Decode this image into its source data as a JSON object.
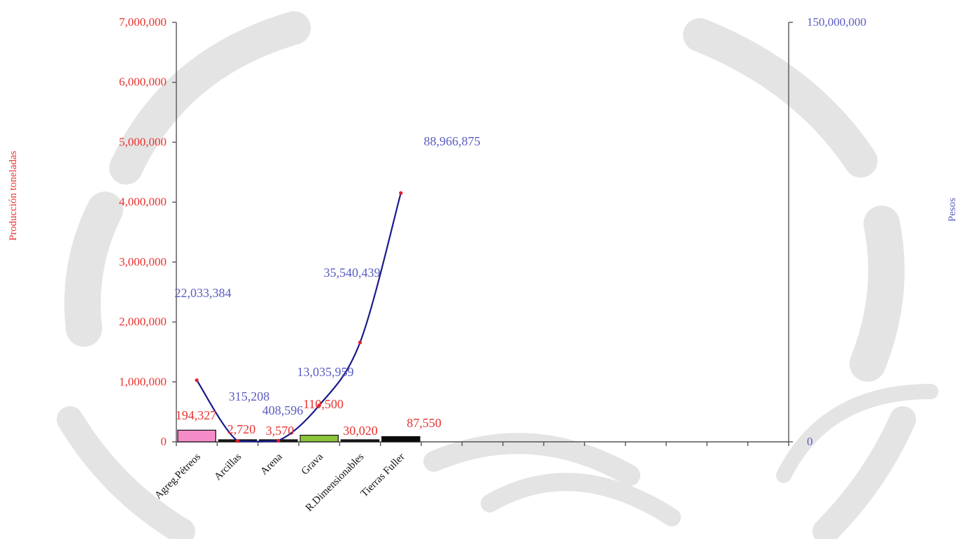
{
  "colors": {
    "left_axis_text": "#e8332f",
    "right_axis_text": "#5a5cc0",
    "line": "#1a1a8c",
    "marker": "#e0202a",
    "axis": "#555555",
    "watermark": "#e4e4e4"
  },
  "chart_data": {
    "type": "bar",
    "title": "",
    "categories": [
      "Agreg.Pétreos",
      "Arcillas",
      "Arena",
      "Grava",
      "R.Dimensionables",
      "Tierras Fuller"
    ],
    "empty_category_slots": 9,
    "y_left": {
      "label": "Producción toneladas",
      "range": [
        0,
        7000000
      ],
      "ticks": [
        "0",
        "1,000,000",
        "2,000,000",
        "3,000,000",
        "4,000,000",
        "5,000,000",
        "6,000,000",
        "7,000,000"
      ],
      "tick_values": [
        0,
        1000000,
        2000000,
        3000000,
        4000000,
        5000000,
        6000000,
        7000000
      ]
    },
    "y_right": {
      "label": "Pesos",
      "range": [
        0,
        150000000
      ],
      "ticks": [
        "0",
        "150,000,000"
      ],
      "tick_values": [
        0,
        150000000
      ]
    },
    "series": [
      {
        "type": "bar",
        "axis": "left",
        "values": [
          194327,
          2720,
          3570,
          110500,
          30020,
          87550
        ],
        "labels": [
          "194,327",
          "2,720",
          "3,570",
          "110,500",
          "30,020",
          "87,550"
        ],
        "colors": [
          "#f48cc8",
          "#1a1a1a",
          "#1a1a1a",
          "#8cc43c",
          "#1a1a1a",
          "#0a0a0a"
        ]
      },
      {
        "type": "line",
        "axis": "right",
        "values": [
          22033384,
          315208,
          408596,
          13035959,
          35540439,
          88966875
        ],
        "labels": [
          "22,033,384",
          "315,208",
          "408,596",
          "13,035,959",
          "35,540,439",
          "88,966,875"
        ]
      }
    ],
    "grid": false,
    "legend": "none"
  }
}
